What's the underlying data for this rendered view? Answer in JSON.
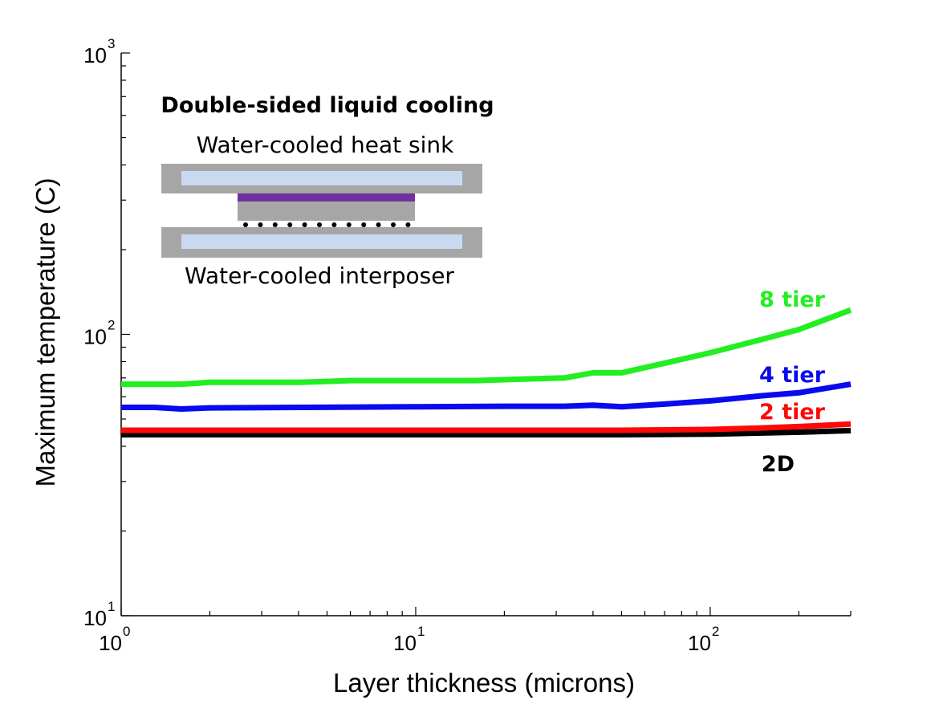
{
  "chart_data": {
    "type": "line",
    "xscale": "log",
    "yscale": "log",
    "xlim": [
      1,
      300
    ],
    "ylim": [
      10,
      1000
    ],
    "xlabel": "Layer thickness (microns)",
    "ylabel": "Maximum temperature (C)",
    "x_ticks": [
      {
        "base": "10",
        "exp": "0",
        "value": 1
      },
      {
        "base": "10",
        "exp": "1",
        "value": 10
      },
      {
        "base": "10",
        "exp": "2",
        "value": 100
      }
    ],
    "y_ticks": [
      {
        "base": "10",
        "exp": "1",
        "value": 10
      },
      {
        "base": "10",
        "exp": "2",
        "value": 100
      },
      {
        "base": "10",
        "exp": "3",
        "value": 1000
      }
    ],
    "series": [
      {
        "name": "8 tier",
        "color": "#22ee22",
        "x": [
          1,
          1.6,
          2,
          4,
          6,
          10,
          16,
          20,
          32,
          40,
          50,
          70,
          100,
          150,
          200,
          300
        ],
        "y": [
          66.5,
          66.5,
          67.5,
          67.5,
          68.5,
          68.5,
          68.5,
          69,
          70,
          73,
          73,
          79,
          86,
          96,
          104,
          122
        ]
      },
      {
        "name": "4 tier",
        "color": "#0a0aee",
        "x": [
          1,
          1.3,
          1.6,
          2,
          4,
          10,
          20,
          32,
          40,
          50,
          70,
          100,
          150,
          200,
          300
        ],
        "y": [
          55,
          55,
          54.3,
          54.8,
          55,
          55.3,
          55.5,
          55.5,
          56,
          55.3,
          56.5,
          58,
          60.5,
          62,
          66.5
        ]
      },
      {
        "name": "2 tier",
        "color": "#ff0808",
        "x": [
          1,
          10,
          50,
          100,
          150,
          200,
          300
        ],
        "y": [
          45.6,
          45.6,
          45.6,
          45.9,
          46.5,
          47,
          48
        ]
      },
      {
        "name": "2D",
        "color": "#000000",
        "x": [
          1,
          10,
          50,
          100,
          150,
          200,
          300
        ],
        "y": [
          44,
          44,
          44,
          44.2,
          44.6,
          44.9,
          45.5
        ]
      }
    ],
    "inset": {
      "title": "Double-sided liquid cooling",
      "top_label": "Water-cooled heat sink",
      "bottom_label": "Water-cooled interposer",
      "colors": {
        "block": "#a6a6a6",
        "channel": "#c9d9f0",
        "die_layer": "#7030a0",
        "bump": "#000000"
      }
    }
  }
}
